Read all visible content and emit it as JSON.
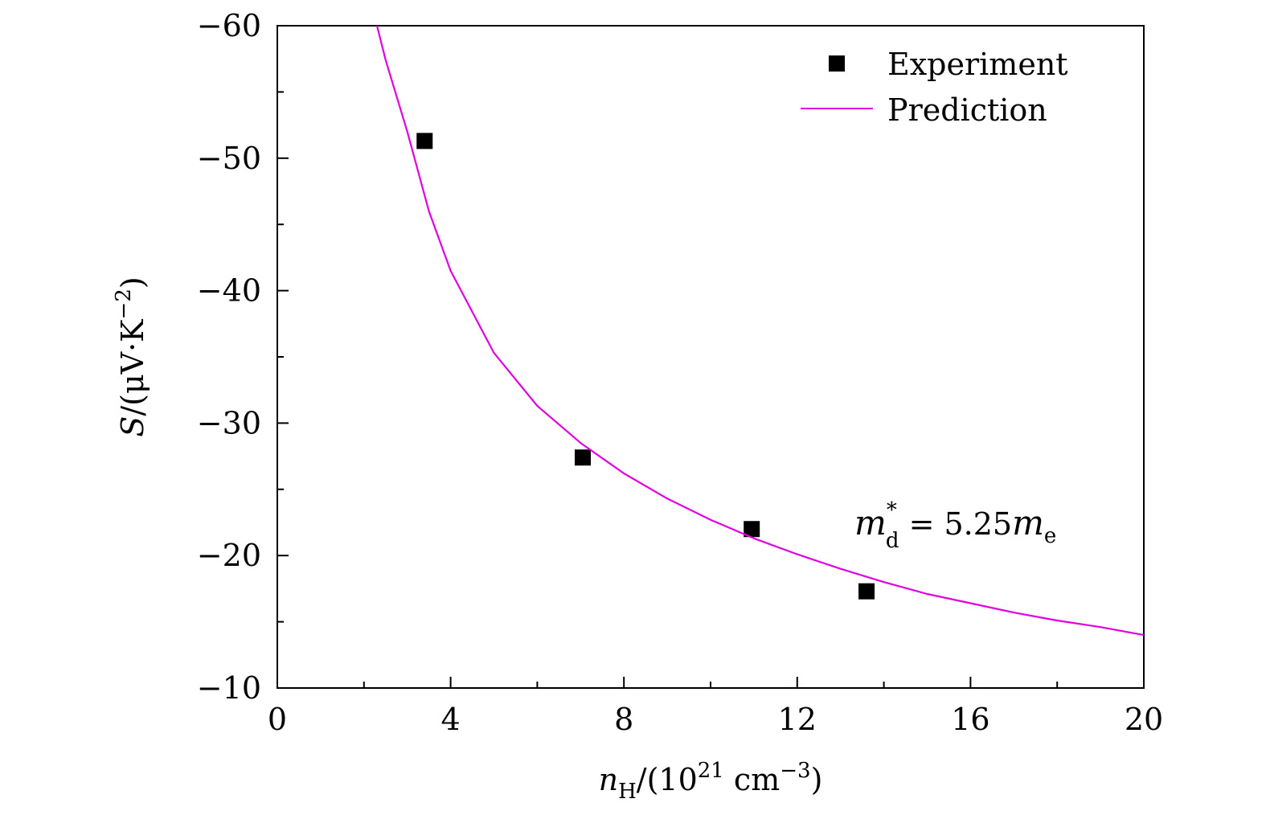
{
  "chart_data": {
    "type": "scatter",
    "xlabel": {
      "main": "n",
      "sub": "H",
      "text": "/(10",
      "sup": "21",
      "unit": " cm",
      "unit_sup": "−3",
      "close": ")"
    },
    "ylabel": {
      "main": "S",
      "text": "/(μV·K",
      "sup": "−2",
      "close": ")"
    },
    "xlim": [
      0,
      20
    ],
    "ylim": [
      -10,
      -60
    ],
    "xticks": [
      0,
      4,
      8,
      12,
      16,
      20
    ],
    "xtick_labels": [
      "0",
      "4",
      "8",
      "12",
      "16",
      "20"
    ],
    "yticks": [
      -60,
      -50,
      -40,
      -30,
      -20,
      -10
    ],
    "ytick_labels": [
      "−60",
      "−50",
      "−40",
      "−30",
      "−20",
      "−10"
    ],
    "grid": false,
    "legend_position": "top-right",
    "series": [
      {
        "name": "Experiment",
        "kind": "scatter",
        "marker": "square",
        "color": "#000000",
        "x": [
          3.4,
          7.05,
          10.95,
          13.6
        ],
        "y": [
          -51.3,
          -27.4,
          -22.0,
          -17.3
        ]
      },
      {
        "name": "Prediction",
        "kind": "line",
        "color": "#e000e0",
        "x": [
          2.3,
          2.5,
          3.0,
          3.5,
          4.0,
          5.0,
          6.0,
          7.0,
          8.0,
          9.0,
          10.0,
          11.0,
          12.0,
          13.0,
          14.0,
          15.0,
          16.0,
          17.0,
          18.0,
          19.0,
          20.0
        ],
        "y": [
          -60.0,
          -57.4,
          -52.0,
          -46.0,
          -41.5,
          -35.3,
          -31.3,
          -28.5,
          -26.2,
          -24.3,
          -22.7,
          -21.3,
          -20.1,
          -19.0,
          -18.0,
          -17.1,
          -16.4,
          -15.7,
          -15.1,
          -14.6,
          -14.0
        ]
      }
    ],
    "annotation": {
      "m": "m",
      "sup": "*",
      "sub": "d",
      "eq": " = 5.25",
      "m2": "m",
      "sub2": "e"
    }
  }
}
